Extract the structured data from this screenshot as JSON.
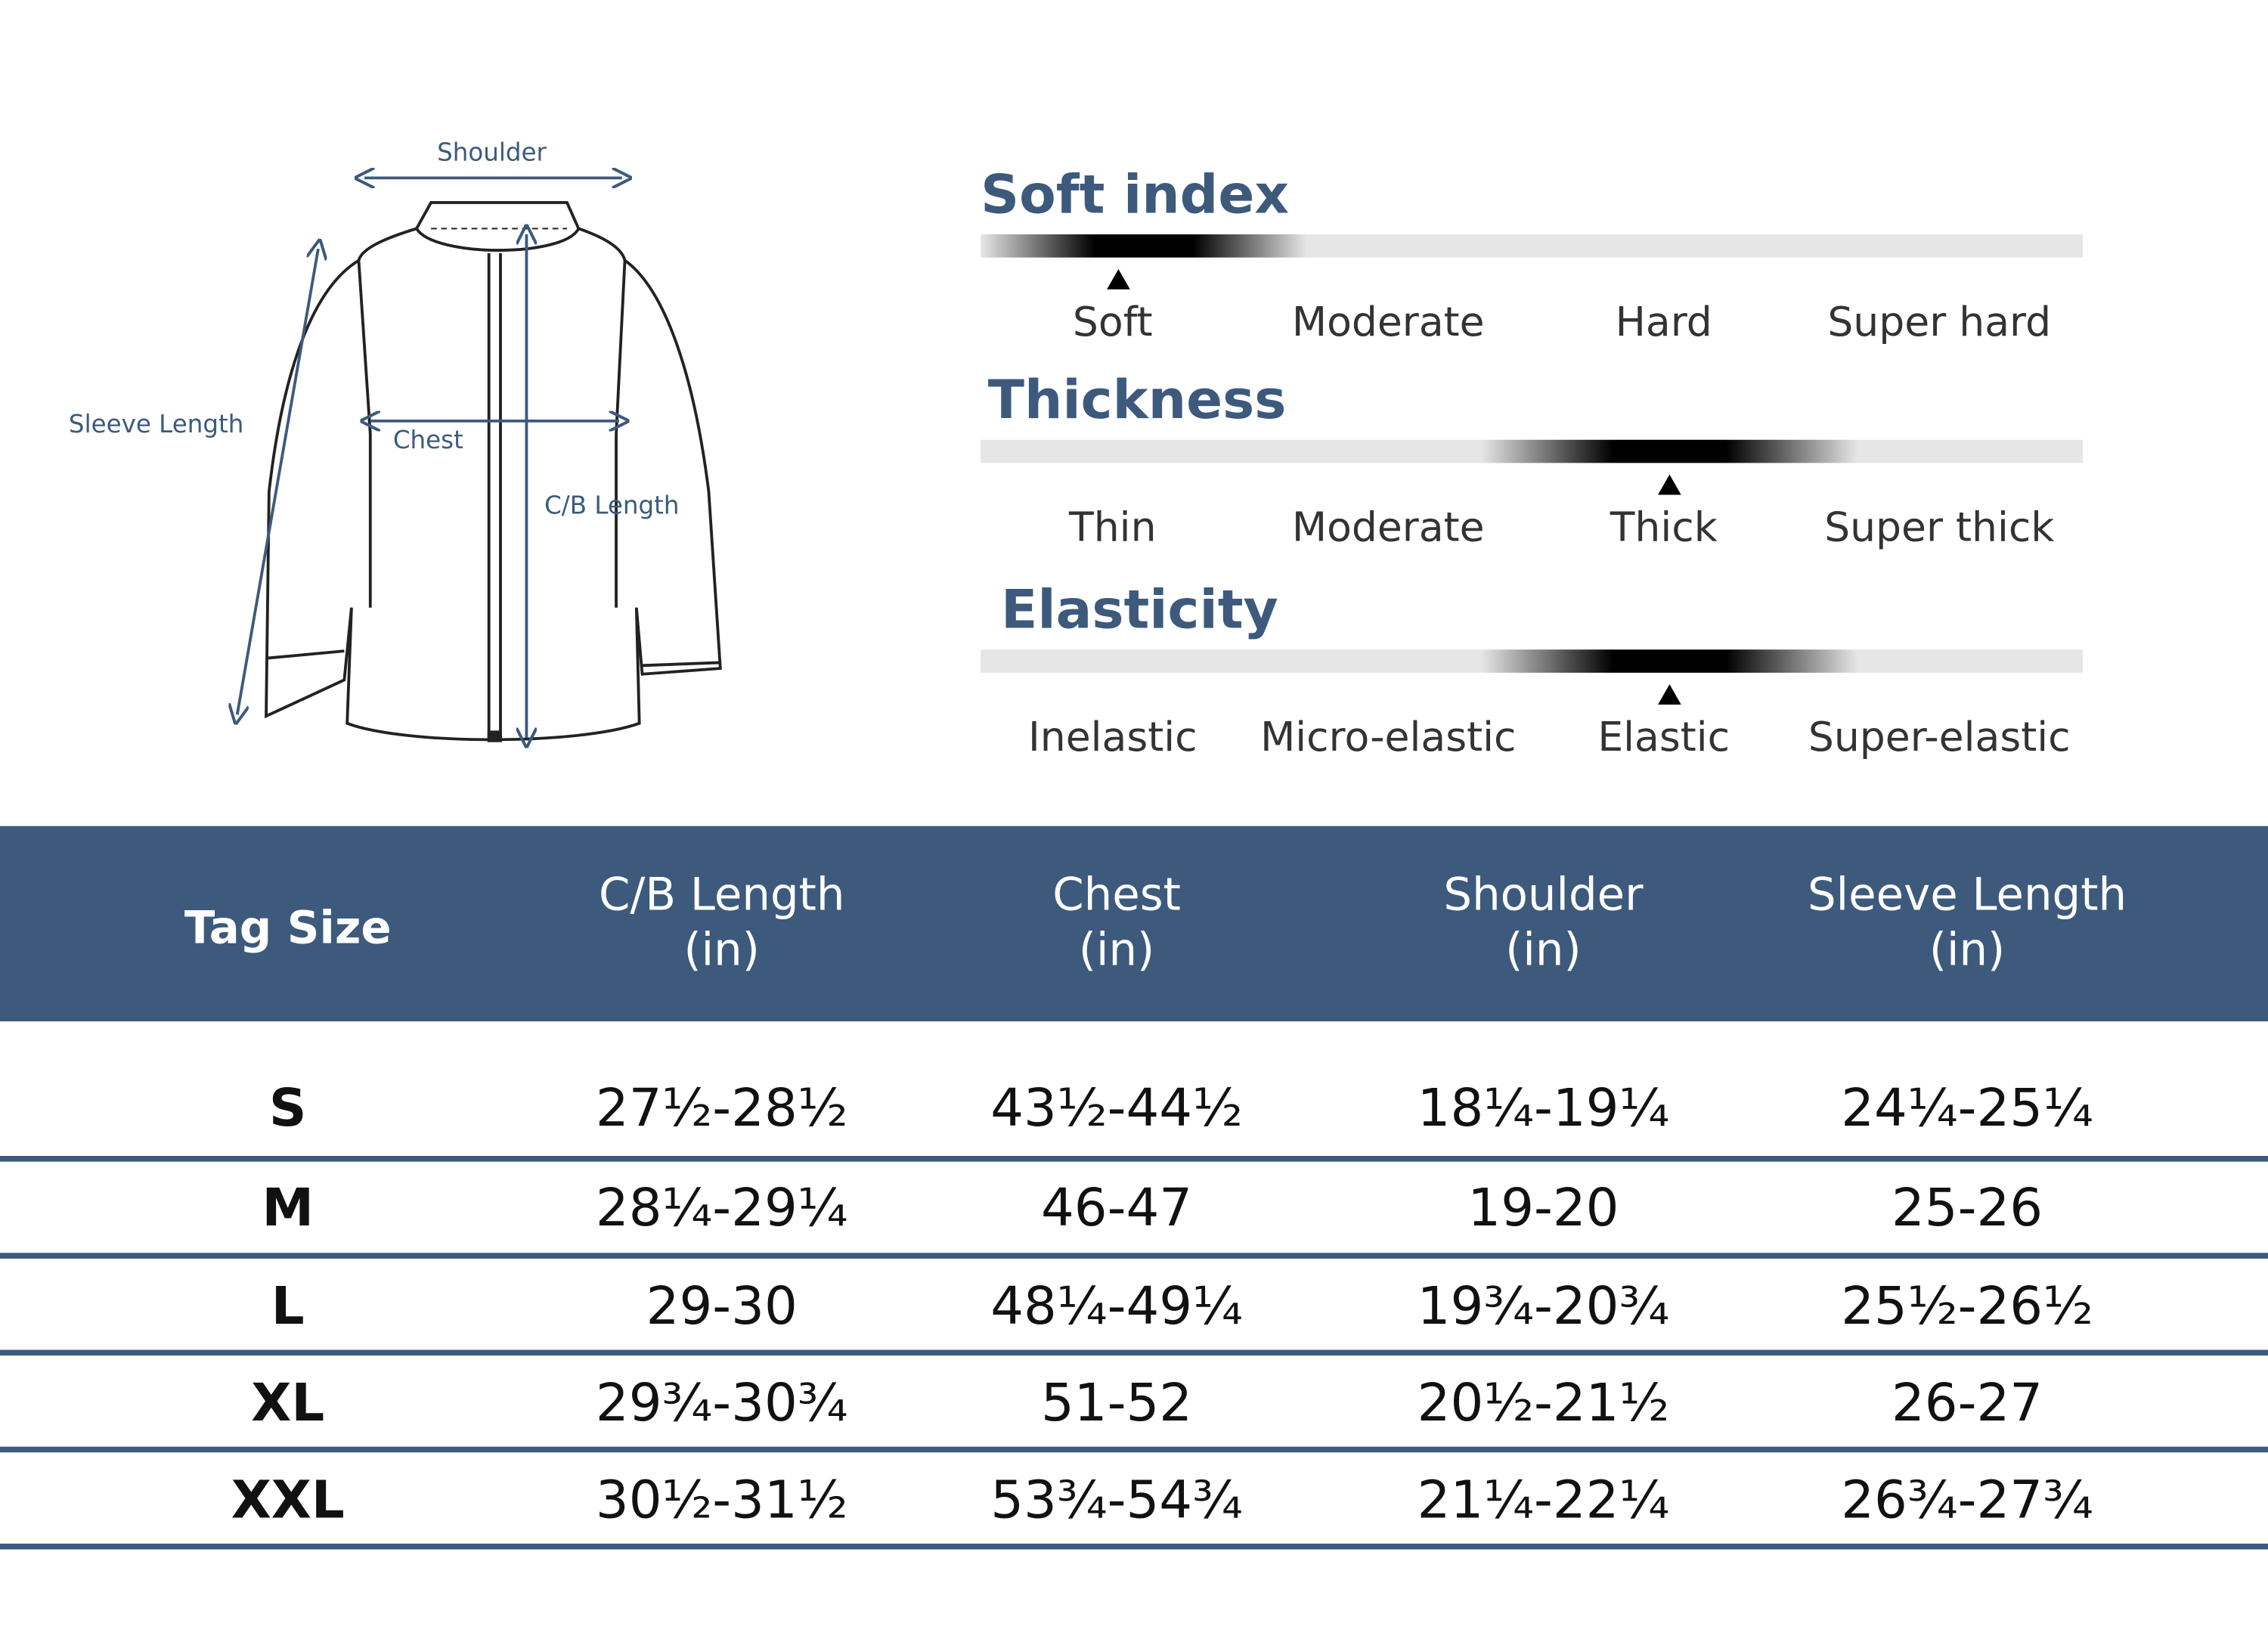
{
  "diagram": {
    "labels": [
      "Shoulder",
      "Sleeve Length",
      "Chest",
      "C/B Length"
    ]
  },
  "indices": [
    {
      "title": "Soft index",
      "options": [
        "Soft",
        "Moderate",
        "Hard",
        "Super hard"
      ],
      "selected": 0
    },
    {
      "title": "Thickness",
      "options": [
        "Thin",
        "Moderate",
        "Thick",
        "Super thick"
      ],
      "selected": 2
    },
    {
      "title": "Elasticity",
      "options": [
        "Inelastic",
        "Micro-elastic",
        "Elastic",
        "Super-elastic"
      ],
      "selected": 2
    }
  ],
  "table": {
    "header": [
      [
        "Tag Size"
      ],
      [
        "C/B Length",
        "(in)"
      ],
      [
        "Chest",
        "(in)"
      ],
      [
        "Shoulder",
        "(in)"
      ],
      [
        "Sleeve Length",
        "(in)"
      ]
    ],
    "rows": [
      [
        "S",
        "27½-28½",
        "43½-44½",
        "18¼-19¼",
        "24¼-25¼"
      ],
      [
        "M",
        "28¼-29¼",
        "46-47",
        "19-20",
        "25-26"
      ],
      [
        "L",
        "29-30",
        "48¼-49¼",
        "19¾-20¾",
        "25½-26½"
      ],
      [
        "XL",
        "29¾-30¾",
        "51-52",
        "20½-21½",
        "26-27"
      ],
      [
        "XXL",
        "30½-31½",
        "53¾-54¾",
        "21¼-22¼",
        "26¾-27¾"
      ]
    ]
  }
}
